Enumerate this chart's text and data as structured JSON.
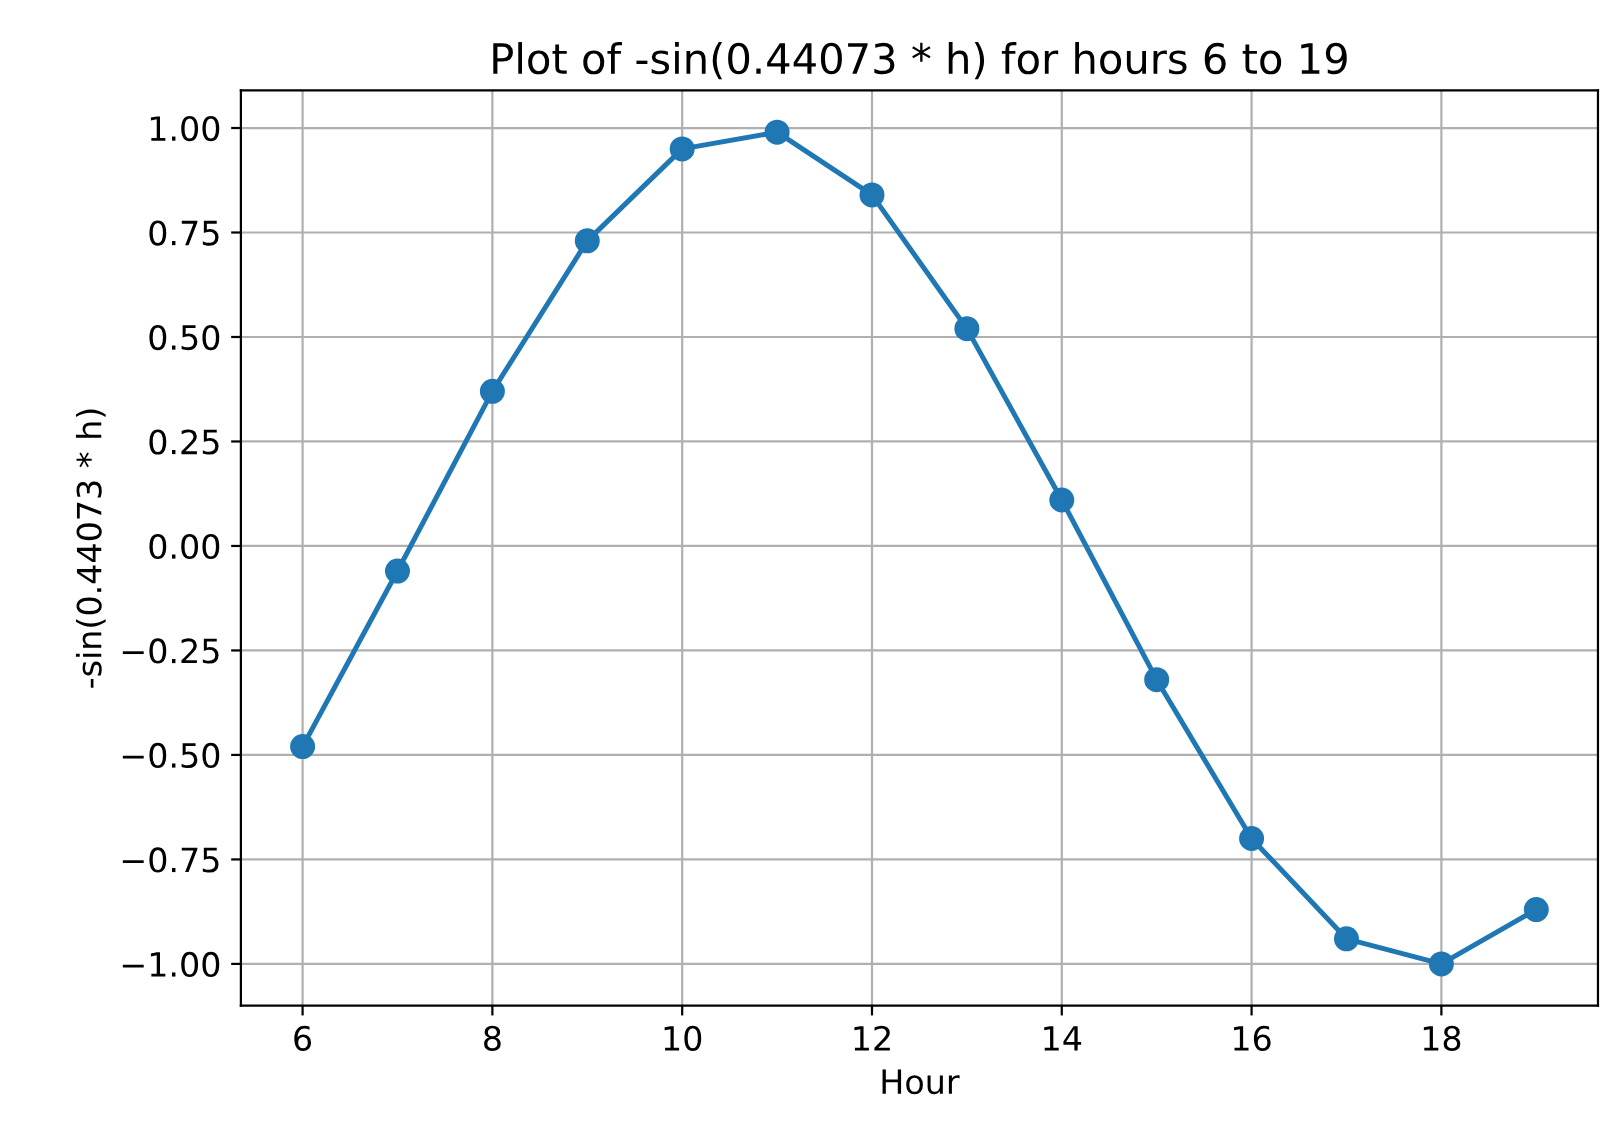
{
  "chart_data": {
    "type": "line",
    "title": "Plot of -sin(0.44073 * h) for hours 6 to 19",
    "xlabel": "Hour",
    "ylabel": "-sin(0.44073 * h)",
    "x": [
      6,
      7,
      8,
      9,
      10,
      11,
      12,
      13,
      14,
      15,
      16,
      17,
      18,
      19
    ],
    "series": [
      {
        "color": "#1f77b4",
        "values": [
          -0.48,
          -0.06,
          0.37,
          0.73,
          0.95,
          0.99,
          0.84,
          0.52,
          0.11,
          -0.32,
          -0.7,
          -0.94,
          -1.0,
          -0.87
        ]
      }
    ],
    "xlim": [
      5.35,
      19.65
    ],
    "ylim": [
      -1.1,
      1.09
    ],
    "xticks": [
      6,
      8,
      10,
      12,
      14,
      16,
      18
    ],
    "yticks": [
      {
        "value": -1.0,
        "label": "−1.00"
      },
      {
        "value": -0.75,
        "label": "−0.75"
      },
      {
        "value": -0.5,
        "label": "−0.50"
      },
      {
        "value": -0.25,
        "label": "−0.25"
      },
      {
        "value": 0,
        "label": "0.00"
      },
      {
        "value": 0.25,
        "label": "0.25"
      },
      {
        "value": 0.5,
        "label": "0.50"
      },
      {
        "value": 0.75,
        "label": "0.75"
      },
      {
        "value": 1.0,
        "label": "1.00"
      }
    ],
    "grid": true,
    "marker": "circle",
    "line_style": "solid"
  }
}
